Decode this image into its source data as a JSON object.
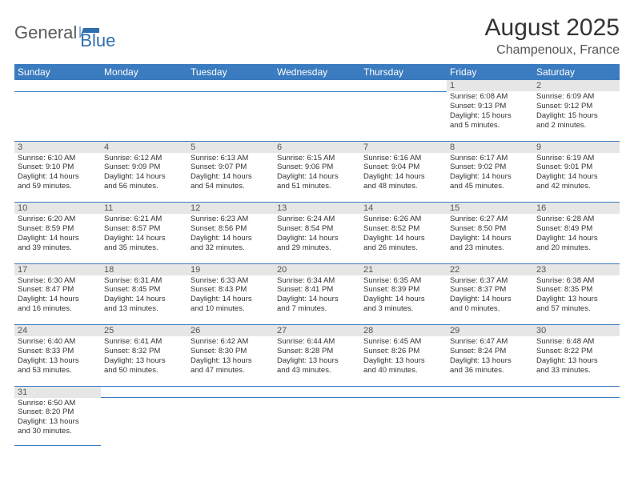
{
  "logo": {
    "text1": "General",
    "text2": "Blue",
    "color1": "#5a5a5a",
    "color2": "#2f6fb0"
  },
  "title": "August 2025",
  "location": "Champenoux, France",
  "header_bg": "#3b7bbf",
  "daynum_bg": "#e6e6e6",
  "weekdays": [
    "Sunday",
    "Monday",
    "Tuesday",
    "Wednesday",
    "Thursday",
    "Friday",
    "Saturday"
  ],
  "weeks": [
    {
      "days": [
        null,
        null,
        null,
        null,
        null,
        {
          "n": "1",
          "sr": "Sunrise: 6:08 AM",
          "ss": "Sunset: 9:13 PM",
          "d1": "Daylight: 15 hours",
          "d2": "and 5 minutes."
        },
        {
          "n": "2",
          "sr": "Sunrise: 6:09 AM",
          "ss": "Sunset: 9:12 PM",
          "d1": "Daylight: 15 hours",
          "d2": "and 2 minutes."
        }
      ]
    },
    {
      "days": [
        {
          "n": "3",
          "sr": "Sunrise: 6:10 AM",
          "ss": "Sunset: 9:10 PM",
          "d1": "Daylight: 14 hours",
          "d2": "and 59 minutes."
        },
        {
          "n": "4",
          "sr": "Sunrise: 6:12 AM",
          "ss": "Sunset: 9:09 PM",
          "d1": "Daylight: 14 hours",
          "d2": "and 56 minutes."
        },
        {
          "n": "5",
          "sr": "Sunrise: 6:13 AM",
          "ss": "Sunset: 9:07 PM",
          "d1": "Daylight: 14 hours",
          "d2": "and 54 minutes."
        },
        {
          "n": "6",
          "sr": "Sunrise: 6:15 AM",
          "ss": "Sunset: 9:06 PM",
          "d1": "Daylight: 14 hours",
          "d2": "and 51 minutes."
        },
        {
          "n": "7",
          "sr": "Sunrise: 6:16 AM",
          "ss": "Sunset: 9:04 PM",
          "d1": "Daylight: 14 hours",
          "d2": "and 48 minutes."
        },
        {
          "n": "8",
          "sr": "Sunrise: 6:17 AM",
          "ss": "Sunset: 9:02 PM",
          "d1": "Daylight: 14 hours",
          "d2": "and 45 minutes."
        },
        {
          "n": "9",
          "sr": "Sunrise: 6:19 AM",
          "ss": "Sunset: 9:01 PM",
          "d1": "Daylight: 14 hours",
          "d2": "and 42 minutes."
        }
      ]
    },
    {
      "days": [
        {
          "n": "10",
          "sr": "Sunrise: 6:20 AM",
          "ss": "Sunset: 8:59 PM",
          "d1": "Daylight: 14 hours",
          "d2": "and 39 minutes."
        },
        {
          "n": "11",
          "sr": "Sunrise: 6:21 AM",
          "ss": "Sunset: 8:57 PM",
          "d1": "Daylight: 14 hours",
          "d2": "and 35 minutes."
        },
        {
          "n": "12",
          "sr": "Sunrise: 6:23 AM",
          "ss": "Sunset: 8:56 PM",
          "d1": "Daylight: 14 hours",
          "d2": "and 32 minutes."
        },
        {
          "n": "13",
          "sr": "Sunrise: 6:24 AM",
          "ss": "Sunset: 8:54 PM",
          "d1": "Daylight: 14 hours",
          "d2": "and 29 minutes."
        },
        {
          "n": "14",
          "sr": "Sunrise: 6:26 AM",
          "ss": "Sunset: 8:52 PM",
          "d1": "Daylight: 14 hours",
          "d2": "and 26 minutes."
        },
        {
          "n": "15",
          "sr": "Sunrise: 6:27 AM",
          "ss": "Sunset: 8:50 PM",
          "d1": "Daylight: 14 hours",
          "d2": "and 23 minutes."
        },
        {
          "n": "16",
          "sr": "Sunrise: 6:28 AM",
          "ss": "Sunset: 8:49 PM",
          "d1": "Daylight: 14 hours",
          "d2": "and 20 minutes."
        }
      ]
    },
    {
      "days": [
        {
          "n": "17",
          "sr": "Sunrise: 6:30 AM",
          "ss": "Sunset: 8:47 PM",
          "d1": "Daylight: 14 hours",
          "d2": "and 16 minutes."
        },
        {
          "n": "18",
          "sr": "Sunrise: 6:31 AM",
          "ss": "Sunset: 8:45 PM",
          "d1": "Daylight: 14 hours",
          "d2": "and 13 minutes."
        },
        {
          "n": "19",
          "sr": "Sunrise: 6:33 AM",
          "ss": "Sunset: 8:43 PM",
          "d1": "Daylight: 14 hours",
          "d2": "and 10 minutes."
        },
        {
          "n": "20",
          "sr": "Sunrise: 6:34 AM",
          "ss": "Sunset: 8:41 PM",
          "d1": "Daylight: 14 hours",
          "d2": "and 7 minutes."
        },
        {
          "n": "21",
          "sr": "Sunrise: 6:35 AM",
          "ss": "Sunset: 8:39 PM",
          "d1": "Daylight: 14 hours",
          "d2": "and 3 minutes."
        },
        {
          "n": "22",
          "sr": "Sunrise: 6:37 AM",
          "ss": "Sunset: 8:37 PM",
          "d1": "Daylight: 14 hours",
          "d2": "and 0 minutes."
        },
        {
          "n": "23",
          "sr": "Sunrise: 6:38 AM",
          "ss": "Sunset: 8:35 PM",
          "d1": "Daylight: 13 hours",
          "d2": "and 57 minutes."
        }
      ]
    },
    {
      "days": [
        {
          "n": "24",
          "sr": "Sunrise: 6:40 AM",
          "ss": "Sunset: 8:33 PM",
          "d1": "Daylight: 13 hours",
          "d2": "and 53 minutes."
        },
        {
          "n": "25",
          "sr": "Sunrise: 6:41 AM",
          "ss": "Sunset: 8:32 PM",
          "d1": "Daylight: 13 hours",
          "d2": "and 50 minutes."
        },
        {
          "n": "26",
          "sr": "Sunrise: 6:42 AM",
          "ss": "Sunset: 8:30 PM",
          "d1": "Daylight: 13 hours",
          "d2": "and 47 minutes."
        },
        {
          "n": "27",
          "sr": "Sunrise: 6:44 AM",
          "ss": "Sunset: 8:28 PM",
          "d1": "Daylight: 13 hours",
          "d2": "and 43 minutes."
        },
        {
          "n": "28",
          "sr": "Sunrise: 6:45 AM",
          "ss": "Sunset: 8:26 PM",
          "d1": "Daylight: 13 hours",
          "d2": "and 40 minutes."
        },
        {
          "n": "29",
          "sr": "Sunrise: 6:47 AM",
          "ss": "Sunset: 8:24 PM",
          "d1": "Daylight: 13 hours",
          "d2": "and 36 minutes."
        },
        {
          "n": "30",
          "sr": "Sunrise: 6:48 AM",
          "ss": "Sunset: 8:22 PM",
          "d1": "Daylight: 13 hours",
          "d2": "and 33 minutes."
        }
      ]
    },
    {
      "days": [
        {
          "n": "31",
          "sr": "Sunrise: 6:50 AM",
          "ss": "Sunset: 8:20 PM",
          "d1": "Daylight: 13 hours",
          "d2": "and 30 minutes."
        },
        null,
        null,
        null,
        null,
        null,
        null
      ]
    }
  ]
}
